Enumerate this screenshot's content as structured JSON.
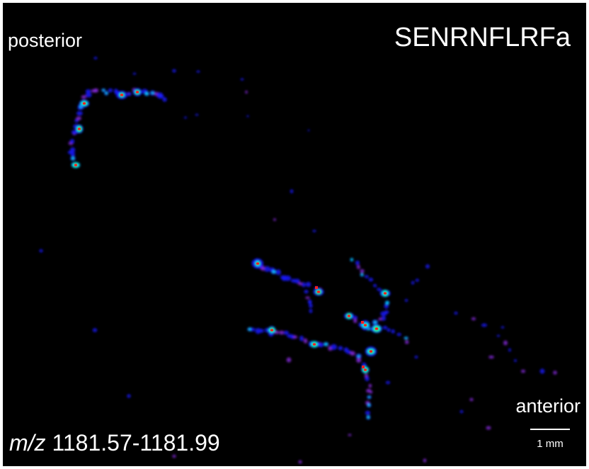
{
  "labels": {
    "posterior": "posterior",
    "anterior": "anterior",
    "peptide": "SENRNFLRFa",
    "mz_prefix": "m/z",
    "mz_range": "1181.57-1181.99",
    "scale_bar": "1 mm"
  },
  "colors": {
    "background": "#000000",
    "text": "#ffffff",
    "intensity_low": "#1a1aff",
    "intensity_mid_low": "#8a2be2",
    "intensity_mid": "#00e5ff",
    "intensity_mid_high": "#39ff14",
    "intensity_high": "#ff2020"
  }
}
